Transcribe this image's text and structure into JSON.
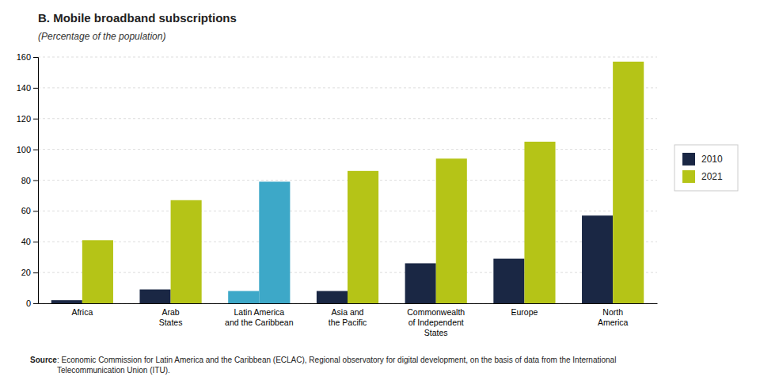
{
  "chart_data": {
    "type": "bar",
    "title": "B. Mobile broadband subscriptions",
    "subtitle": "(Percentage of the population)",
    "categories": [
      "Africa",
      "Arab\nStates",
      "Latin America\nand the Caribbean",
      "Asia and\nthe Pacific",
      "Commonwealth\nof Independent\nStates",
      "Europe",
      "North\nAmerica"
    ],
    "series": [
      {
        "name": "2010",
        "color": "#1a2744",
        "colors": [
          "#1a2744",
          "#1a2744",
          "#3da8c8",
          "#1a2744",
          "#1a2744",
          "#1a2744",
          "#1a2744"
        ],
        "values": [
          2,
          9,
          8,
          8,
          26,
          29,
          57
        ]
      },
      {
        "name": "2021",
        "color": "#b5c417",
        "colors": [
          "#b5c417",
          "#b5c417",
          "#3da8c8",
          "#b5c417",
          "#b5c417",
          "#b5c417",
          "#b5c417"
        ],
        "values": [
          41,
          67,
          79,
          86,
          94,
          105,
          157
        ]
      }
    ],
    "ylim": [
      0,
      160
    ],
    "yticks": [
      0,
      20,
      40,
      60,
      80,
      100,
      120,
      140,
      160
    ],
    "grid": true,
    "legend": "right",
    "source_label": "Source",
    "source_text": ": Economic Commission for Latin America and the Caribbean (ECLAC), Regional observatory for digital development, on the basis of data from the International\nTelecommunication Union (ITU)."
  }
}
